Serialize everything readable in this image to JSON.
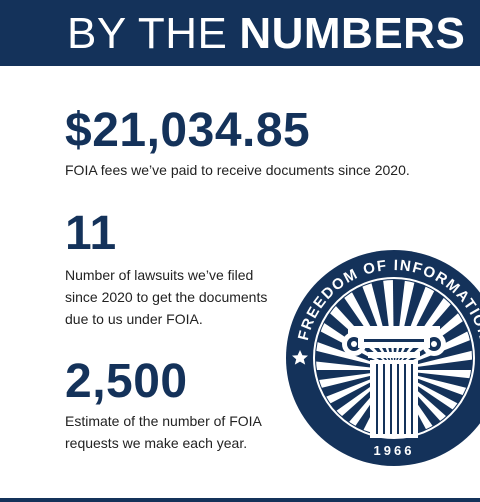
{
  "header": {
    "title_light": "BY THE",
    "title_bold": "NUMBERS"
  },
  "stats": [
    {
      "value": "$21,034.85",
      "description": "FOIA fees we’ve paid to receive documents since 2020."
    },
    {
      "value": "11",
      "description_lines": [
        "Number of lawsuits we’ve filed",
        "since 2020 to get the documents",
        "due to us under FOIA."
      ]
    },
    {
      "value": "2,500",
      "description_lines": [
        "Estimate of the number of FOIA",
        "requests we make each year."
      ]
    }
  ],
  "seal": {
    "arc_text": "FREEDOM OF INFORMATION",
    "year": "1966",
    "emblem": "ionic-column-icon",
    "colors": {
      "navy": "#14325a",
      "white": "#ffffff"
    }
  }
}
